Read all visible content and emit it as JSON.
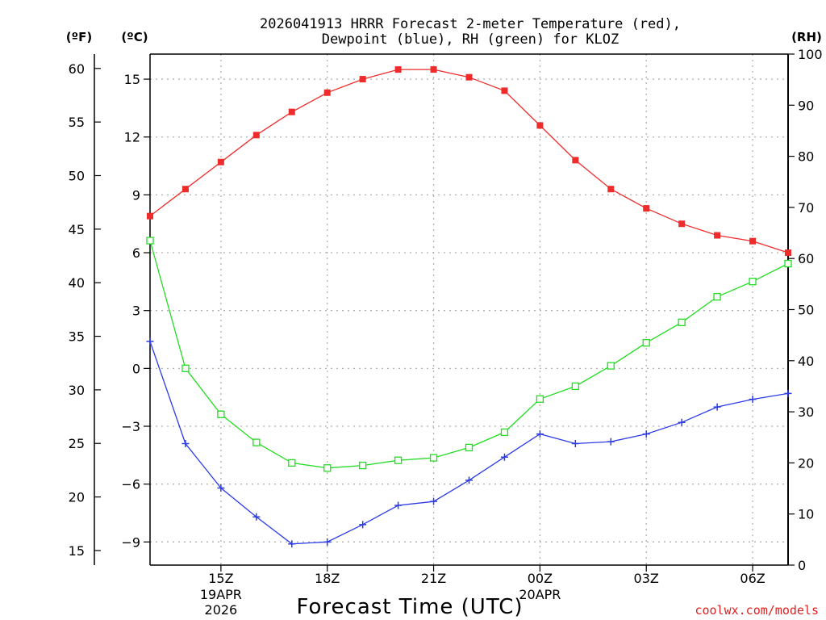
{
  "title_line1": "2026041913 HRRR Forecast 2-meter Temperature (red),",
  "title_line2": "Dewpoint (blue), RH (green) for KLOZ",
  "watermark": "coolwx.com/models",
  "chart_data": {
    "type": "line",
    "title": "2026041913 HRRR Forecast 2-meter Temperature (red), Dewpoint (blue), RH (green) for KLOZ",
    "xlabel": "Forecast Time (UTC)",
    "unit_labels": {
      "fahrenheit": "(ºF)",
      "celsius": "(ºC)",
      "rh": "(RH)"
    },
    "x_hours": [
      13,
      14,
      15,
      16,
      17,
      18,
      19,
      20,
      21,
      22,
      23,
      24,
      25,
      26,
      27,
      28,
      29,
      30,
      31
    ],
    "x_ticks": [
      {
        "hour": 15,
        "label": "15Z",
        "sub1": "19APR",
        "sub2": "2026"
      },
      {
        "hour": 18,
        "label": "18Z"
      },
      {
        "hour": 21,
        "label": "21Z"
      },
      {
        "hour": 24,
        "label": "00Z",
        "sub1": "20APR"
      },
      {
        "hour": 27,
        "label": "03Z"
      },
      {
        "hour": 30,
        "label": "06Z"
      }
    ],
    "xlim": [
      13,
      31
    ],
    "ylim_c": [
      -10.2,
      16.3
    ],
    "ylim_rh": [
      0,
      100
    ],
    "yticks_c": [
      "15",
      "12",
      "9",
      "6",
      "3",
      "0",
      "−3",
      "−6",
      "−9"
    ],
    "yticks_f": [
      "60",
      "55",
      "50",
      "45",
      "40",
      "35",
      "30",
      "25",
      "20",
      "15"
    ],
    "yticks_rh": [
      "100",
      "90",
      "80",
      "70",
      "60",
      "50",
      "40",
      "30",
      "20",
      "10",
      "0"
    ],
    "series": [
      {
        "name": "Temperature",
        "axis": "c",
        "color": "#ee2c2c",
        "marker": "filled-square",
        "values": [
          7.9,
          9.3,
          10.7,
          12.1,
          13.3,
          14.3,
          15.0,
          15.5,
          15.5,
          15.1,
          14.4,
          12.6,
          10.8,
          9.3,
          8.3,
          7.5,
          6.9,
          6.6,
          6.0
        ]
      },
      {
        "name": "Dewpoint",
        "axis": "c",
        "color": "#2c3ce8",
        "marker": "plus",
        "values": [
          1.4,
          -3.9,
          -6.2,
          -7.7,
          -9.1,
          -9.0,
          -8.1,
          -7.1,
          -6.9,
          -5.8,
          -4.6,
          -3.4,
          -3.9,
          -3.8,
          -3.4,
          -2.8,
          -2.0,
          -1.6,
          -1.3
        ]
      },
      {
        "name": "RH",
        "axis": "rh",
        "color": "#22dd22",
        "marker": "open-square",
        "values": [
          63.5,
          38.5,
          29.5,
          24.0,
          20.0,
          19.0,
          19.5,
          20.5,
          21.0,
          23.0,
          26.0,
          32.5,
          35.0,
          39.0,
          43.5,
          47.5,
          52.5,
          55.5,
          59.0
        ]
      }
    ]
  }
}
